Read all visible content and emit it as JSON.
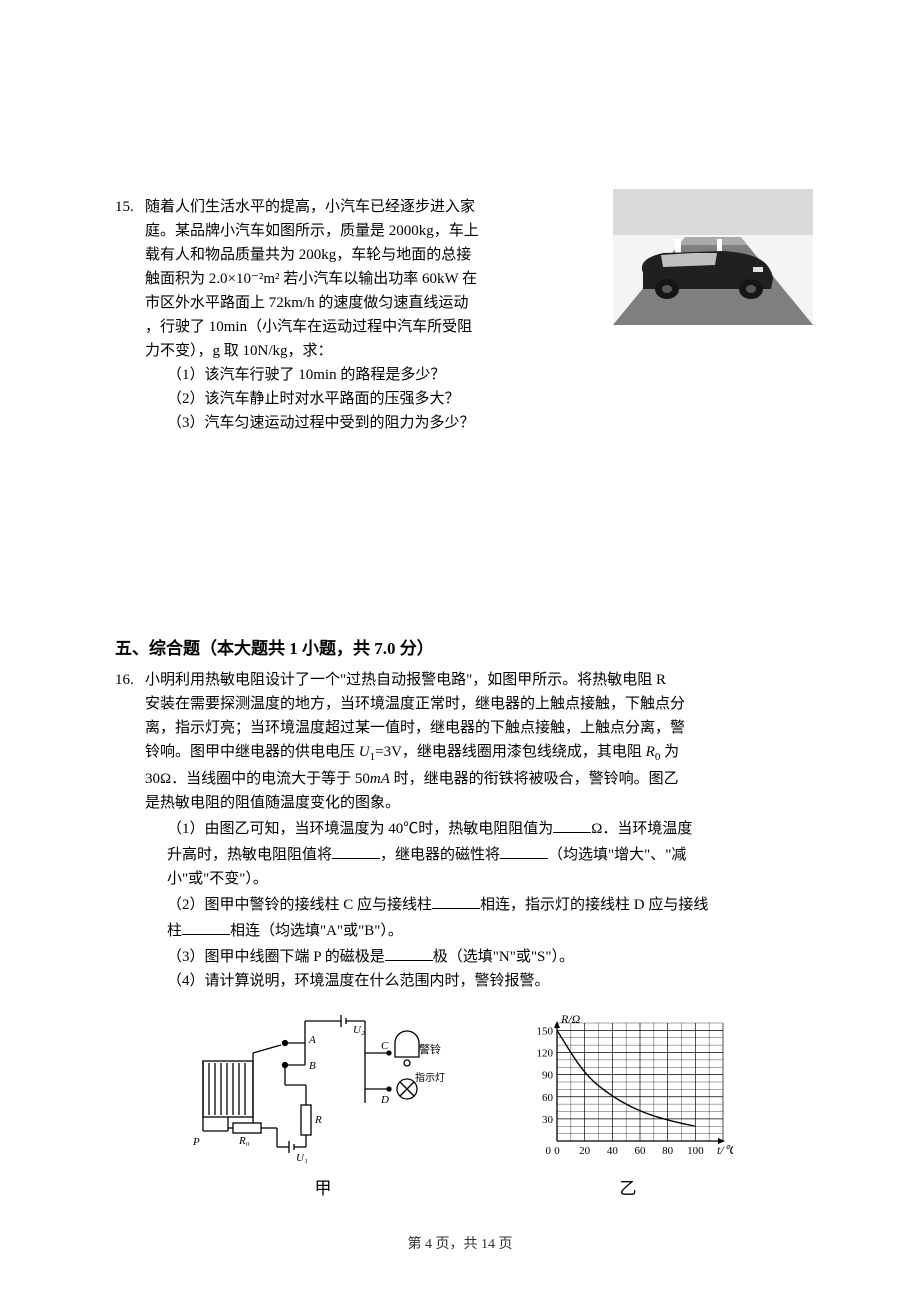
{
  "q15": {
    "num": "15.",
    "body_l1": "随着人们生活水平的提高，小汽车已经逐步进入家",
    "body_l2": "庭。某品牌小汽车如图所示，质量是 2000kg，车上",
    "body_l3": "载有人和物品质量共为 200kg，车轮与地面的总接",
    "body_l4": "触面积为 2.0×10⁻²m² 若小汽车以输出功率 60kW 在",
    "body_l5": "市区外水平路面上 72km/h 的速度做匀速直线运动",
    "body_l6": "，行驶了 10min（小汽车在运动过程中汽车所受阻",
    "body_l7": "力不变），g 取 10N/kg，求：",
    "sub1": "（1）该汽车行驶了 10min 的路程是多少？",
    "sub2": "（2）该汽车静止时对水平路面的压强多大？",
    "sub3": "（3）汽车匀速运动过程中受到的阻力为多少？"
  },
  "section5": {
    "title": "五、综合题（本大题共 1 小题，共 7.0 分）"
  },
  "q16": {
    "num": "16.",
    "body_l1": "小明利用热敏电阻设计了一个\"过热自动报警电路\"，如图甲所示。将热敏电阻 R",
    "body_l2": "安装在需要探测温度的地方，当环境温度正常时，继电器的上触点接触，下触点分",
    "body_l3": "离，指示灯亮；当环境温度超过某一值时，继电器的下触点接触，上触点分离，警",
    "body_l4_a": "铃响。图甲中继电器的供电电压 ",
    "body_l4_b": "U",
    "body_l4_c": "1",
    "body_l4_d": "=3V，继电器线圈用漆包线绕成，其电阻 ",
    "body_l4_e": "R",
    "body_l4_f": "0",
    "body_l4_g": " 为",
    "body_l5_a": "30Ω．当线圈中的电流大于等于 50",
    "body_l5_b": "mA",
    "body_l5_c": " 时，继电器的衔铁将被吸合，警铃响。图乙",
    "body_l6": "是热敏电阻的阻值随温度变化的图象。",
    "sub1_a": "（1）由图乙可知，当环境温度为 40℃时，热敏电阻阻值为",
    "sub1_b": "Ω．当环境温度",
    "sub1_c": "升高时，热敏电阻阻值将",
    "sub1_d": "，继电器的磁性将",
    "sub1_e": "（均选填\"增大\"、\"减",
    "sub1_f": "小\"或\"不变\"）。",
    "sub2_a": "（2）图甲中警铃的接线柱 C 应与接线柱",
    "sub2_b": "相连，指示灯的接线柱 D 应与接线",
    "sub2_c": "柱",
    "sub2_d": "相连（均选填\"A\"或\"B\"）。",
    "sub3_a": "（3）图甲中线圈下端 P 的磁极是",
    "sub3_b": "极（选填\"N\"或\"S\"）。",
    "sub4": "（4）请计算说明，环境温度在什么范围内时，警铃报警。"
  },
  "circuit": {
    "labels": {
      "U2": "U₂",
      "A": "A",
      "B": "B",
      "C": "C",
      "D": "D",
      "R0": "R₀",
      "R": "R",
      "P": "P",
      "U1": "U₁",
      "bell": "警铃",
      "lamp": "指示灯"
    }
  },
  "chart": {
    "type": "line",
    "xlabel": "t/℃",
    "ylabel": "R/Ω",
    "xticks": [
      0,
      20,
      40,
      60,
      80,
      100
    ],
    "yticks": [
      0,
      30,
      60,
      90,
      120,
      150
    ],
    "xlim": [
      0,
      120
    ],
    "ylim": [
      0,
      160
    ],
    "data_x": [
      0,
      20,
      40,
      60,
      80,
      100
    ],
    "data_y": [
      150,
      90,
      60,
      40,
      28,
      20
    ],
    "bg": "#ffffff",
    "grid_color": "#000000",
    "line_color": "#000000",
    "axis_fontsize": 11,
    "label_fontsize": 12,
    "line_width": 1.4
  },
  "captions": {
    "jia": "甲",
    "yi": "乙"
  },
  "pagenum": "第 4 页，共 14 页"
}
